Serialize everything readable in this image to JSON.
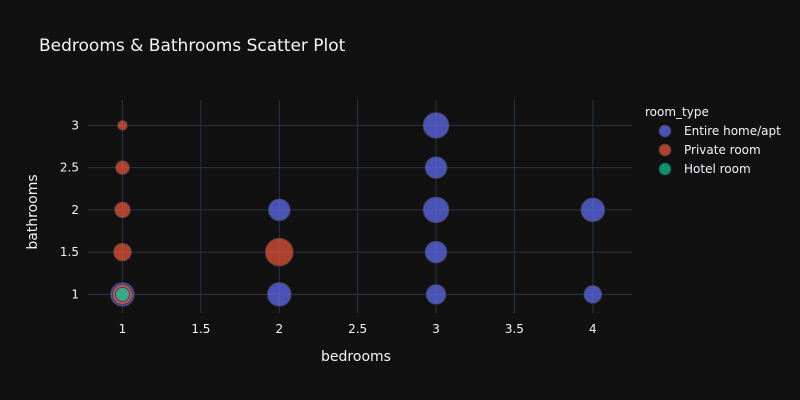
{
  "chart_data": {
    "type": "scatter",
    "title": "Bedrooms & Bathrooms Scatter Plot",
    "xlabel": "bedrooms",
    "ylabel": "bathrooms",
    "xlim": [
      0.78,
      4.25
    ],
    "ylim": [
      0.78,
      3.3
    ],
    "xticks": [
      "1",
      "1.5",
      "2",
      "2.5",
      "3",
      "3.5",
      "4"
    ],
    "yticks": [
      "1",
      "1.5",
      "2",
      "2.5",
      "3"
    ],
    "grid": true,
    "legend": {
      "title": "room_type",
      "position": "top-right"
    },
    "series": [
      {
        "name": "Entire home/apt",
        "color": "#636efa",
        "points": [
          {
            "x": 1,
            "y": 1,
            "size": 12
          },
          {
            "x": 2,
            "y": 1,
            "size": 12
          },
          {
            "x": 2,
            "y": 2,
            "size": 11
          },
          {
            "x": 3,
            "y": 1,
            "size": 10
          },
          {
            "x": 3,
            "y": 1.5,
            "size": 11
          },
          {
            "x": 3,
            "y": 2,
            "size": 13
          },
          {
            "x": 3,
            "y": 2.5,
            "size": 11
          },
          {
            "x": 3,
            "y": 3,
            "size": 13
          },
          {
            "x": 4,
            "y": 1,
            "size": 9
          },
          {
            "x": 4,
            "y": 2,
            "size": 12
          }
        ]
      },
      {
        "name": "Private room",
        "color": "#ef553b",
        "points": [
          {
            "x": 1,
            "y": 1,
            "size": 10
          },
          {
            "x": 1,
            "y": 1.5,
            "size": 9
          },
          {
            "x": 1,
            "y": 2,
            "size": 8
          },
          {
            "x": 1,
            "y": 2.5,
            "size": 7
          },
          {
            "x": 1,
            "y": 3,
            "size": 5
          },
          {
            "x": 2,
            "y": 1.5,
            "size": 14
          }
        ]
      },
      {
        "name": "Hotel room",
        "color": "#00cc96",
        "points": [
          {
            "x": 1,
            "y": 1,
            "size": 7
          }
        ]
      }
    ]
  }
}
